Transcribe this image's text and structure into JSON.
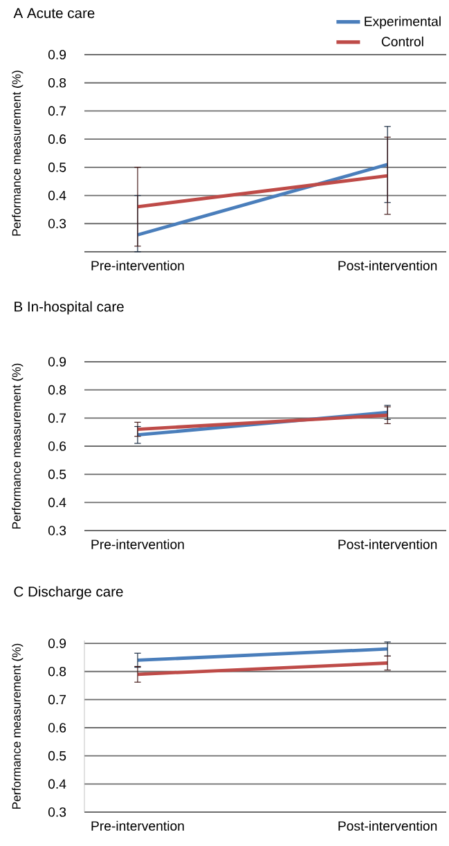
{
  "chart_data": [
    {
      "type": "line",
      "title": "A  Acute care",
      "ylabel": "Performance measurement (%)",
      "categories": [
        "Pre-intervention",
        "Post-intervention"
      ],
      "series": [
        {
          "name": "Experimental",
          "color": "#4a7ebb",
          "values": [
            0.26,
            0.51
          ],
          "errors": [
            [
              0.2,
              0.4
            ],
            0.135
          ]
        },
        {
          "name": "Control",
          "color": "#be4b48",
          "values": [
            0.36,
            0.47
          ],
          "errors": [
            0.14,
            0.137
          ]
        }
      ],
      "ylim": [
        0.2,
        0.9
      ],
      "yticks": [
        {
          "value": 0.2,
          "label": null
        },
        0.3,
        0.4,
        0.5,
        0.6,
        0.7,
        0.8,
        0.9
      ],
      "grid": "y",
      "legend": "top right",
      "marker": "none",
      "line_style": "solid"
    },
    {
      "type": "line",
      "title": "B  In-hospital care",
      "ylabel": "Performance measurement (%)",
      "categories": [
        "Pre-intervention",
        "Post-intervention"
      ],
      "series": [
        {
          "color": "#4a7ebb",
          "values": [
            0.64,
            0.72
          ],
          "errors": [
            0.03,
            0.025
          ]
        },
        {
          "color": "#be4b48",
          "values": [
            0.66,
            0.71
          ],
          "errors": [
            0.025,
            0.03
          ]
        }
      ],
      "ylim": [
        0.3,
        0.9
      ],
      "yticks": [
        0.3,
        0.4,
        0.5,
        0.6,
        0.7,
        0.8,
        0.9
      ],
      "grid": "y",
      "marker": "none",
      "line_style": "solid"
    },
    {
      "type": "line",
      "title": "C  Discharge care",
      "ylabel": "Performance measurement (%)",
      "categories": [
        "Pre-intervention",
        "Post-intervention"
      ],
      "series": [
        {
          "color": "#4a7ebb",
          "values": [
            0.84,
            0.88
          ],
          "errors": [
            0.025,
            0.025
          ]
        },
        {
          "color": "#be4b48",
          "values": [
            0.79,
            0.83
          ],
          "errors": [
            0.028,
            0.025
          ]
        }
      ],
      "ylim": [
        0.3,
        0.91
      ],
      "yticks": [
        0.3,
        0.4,
        0.5,
        0.6,
        0.7,
        0.8,
        0.9
      ],
      "grid": "y",
      "marker": "none",
      "line_style": "solid"
    }
  ]
}
